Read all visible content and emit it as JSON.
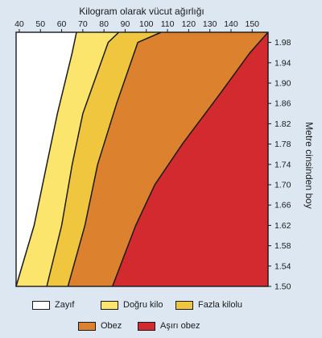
{
  "chart_data": {
    "type": "area",
    "xlabel": "Kilogram olarak vücut ağırlığı",
    "ylabel": "Metre cinsinden boy",
    "x_ticks": [
      40,
      50,
      60,
      70,
      80,
      90,
      100,
      110,
      120,
      130,
      140,
      150
    ],
    "y_ticks": [
      "1.50",
      "1.54",
      "1.58",
      "1.62",
      "1.66",
      "1.70",
      "1.74",
      "1.78",
      "1.82",
      "1.86",
      "1.90",
      "1.94",
      "1.98"
    ],
    "xlim": [
      38.5,
      157.5
    ],
    "ylim": [
      1.5,
      2.0
    ],
    "boundaries": [
      {
        "between": [
          "Zayıf",
          "Doğru kilo"
        ],
        "points": [
          [
            38.5,
            1.5
          ],
          [
            47,
            1.62
          ],
          [
            53,
            1.74
          ],
          [
            58,
            1.84
          ],
          [
            65,
            1.96
          ],
          [
            67,
            2.0
          ]
        ]
      },
      {
        "between": [
          "Doğru kilo",
          "Fazla kilolu"
        ],
        "points": [
          [
            53,
            1.5
          ],
          [
            60,
            1.62
          ],
          [
            65,
            1.74
          ],
          [
            70,
            1.84
          ],
          [
            82,
            1.98
          ],
          [
            87,
            2.0
          ]
        ]
      },
      {
        "between": [
          "Fazla kilolu",
          "Obez"
        ],
        "points": [
          [
            63,
            1.5
          ],
          [
            71,
            1.62
          ],
          [
            77,
            1.74
          ],
          [
            86,
            1.86
          ],
          [
            96,
            1.98
          ],
          [
            107,
            2.0
          ]
        ]
      },
      {
        "between": [
          "Obez",
          "Aşırı obez"
        ],
        "points": [
          [
            84,
            1.5
          ],
          [
            95,
            1.62
          ],
          [
            104,
            1.7
          ],
          [
            117,
            1.78
          ],
          [
            135,
            1.88
          ],
          [
            149,
            1.96
          ],
          [
            157.5,
            2.0
          ]
        ]
      }
    ],
    "series": [
      {
        "name": "Zayıf",
        "color": "#ffffff"
      },
      {
        "name": "Doğru kilo",
        "color": "#fbe56c"
      },
      {
        "name": "Fazla kilolu",
        "color": "#f0c63e"
      },
      {
        "name": "Obez",
        "color": "#dc822e"
      },
      {
        "name": "Aşırı obez",
        "color": "#d22a2e"
      }
    ],
    "legend": [
      {
        "label": "Zayıf",
        "color": "#ffffff"
      },
      {
        "label": "Doğru kilo",
        "color": "#fbe56c"
      },
      {
        "label": "Fazla kilolu",
        "color": "#f0c63e"
      },
      {
        "label": "Obez",
        "color": "#dc822e"
      },
      {
        "label": "Aşırı obez",
        "color": "#d22a2e"
      }
    ],
    "grid": false,
    "legend_placement": "bottom"
  }
}
